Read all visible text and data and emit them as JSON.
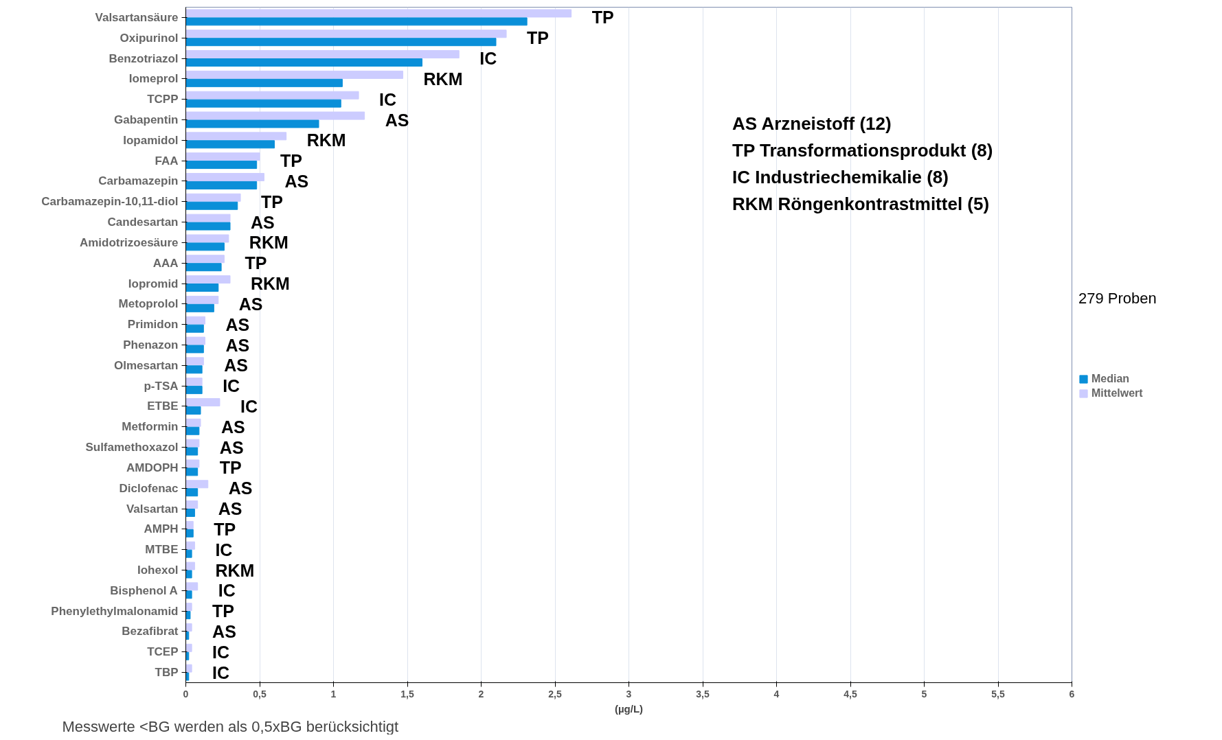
{
  "chart_data": {
    "type": "bar",
    "orientation": "horizontal",
    "xlabel": "(µg/L)",
    "categories": [
      "Valsartansäure",
      "Oxipurinol",
      "Benzotriazol",
      "Iomeprol",
      "TCPP",
      "Gabapentin",
      "Iopamidol",
      "FAA",
      "Carbamazepin",
      "Carbamazepin-10,11-diol",
      "Candesartan",
      "Amidotrizoesäure",
      "AAA",
      "Iopromid",
      "Metoprolol",
      "Primidon",
      "Phenazon",
      "Olmesartan",
      "p-TSA",
      "ETBE",
      "Metformin",
      "Sulfamethoxazol",
      "AMDOPH",
      "Diclofenac",
      "Valsartan",
      "AMPH",
      "MTBE",
      "Iohexol",
      "Bisphenol A",
      "Phenylethylmalonamid",
      "Bezafibrat",
      "TCEP",
      "TBP"
    ],
    "series": [
      {
        "name": "Mittelwert",
        "color": "#ccccff",
        "values": [
          2.61,
          2.17,
          1.85,
          1.47,
          1.17,
          1.21,
          0.68,
          0.5,
          0.53,
          0.37,
          0.3,
          0.29,
          0.26,
          0.3,
          0.22,
          0.13,
          0.13,
          0.12,
          0.11,
          0.23,
          0.1,
          0.09,
          0.09,
          0.15,
          0.08,
          0.05,
          0.06,
          0.06,
          0.08,
          0.04,
          0.04,
          0.04,
          0.04
        ]
      },
      {
        "name": "Median",
        "color": "#0a8fd8",
        "values": [
          2.31,
          2.1,
          1.6,
          1.06,
          1.05,
          0.9,
          0.6,
          0.48,
          0.48,
          0.35,
          0.3,
          0.26,
          0.24,
          0.22,
          0.19,
          0.12,
          0.12,
          0.11,
          0.11,
          0.1,
          0.09,
          0.08,
          0.08,
          0.08,
          0.06,
          0.05,
          0.04,
          0.04,
          0.04,
          0.03,
          0.02,
          0.02,
          0.02
        ]
      }
    ],
    "xlim": [
      0,
      6
    ],
    "xticks": [
      0,
      {
        "value": 0.5,
        "label": "0,5"
      },
      1,
      {
        "value": 1.5,
        "label": "1,5"
      },
      2,
      {
        "value": 2.5,
        "label": "2,5"
      },
      3,
      {
        "value": 3.5,
        "label": "3,5"
      },
      4,
      {
        "value": 4.5,
        "label": "4,5"
      },
      5,
      {
        "value": 5.5,
        "label": "5,5"
      },
      6
    ],
    "grid": "x",
    "legend": "right",
    "annotations": [
      "AS Arzneistoff (12)",
      "TP Transformationsprodukt (8)",
      "IC Industriechemikalie (8)",
      "RKM Röngenkontrastmittel (5)",
      "279 Proben",
      "Messwerte <BG werden als 0,5xBG berücksichtigt",
      "TP",
      "TP",
      "IC",
      "RKM",
      "IC",
      "AS",
      "RKM",
      "TP",
      "AS",
      "TP",
      "AS",
      "RKM",
      "TP",
      "RKM",
      "AS",
      "AS",
      "AS",
      "AS",
      "IC",
      "IC",
      "AS",
      "AS",
      "TP",
      "AS",
      "AS",
      "TP",
      "IC",
      "RKM",
      "IC",
      "TP",
      "AS",
      "IC",
      "IC"
    ]
  }
}
